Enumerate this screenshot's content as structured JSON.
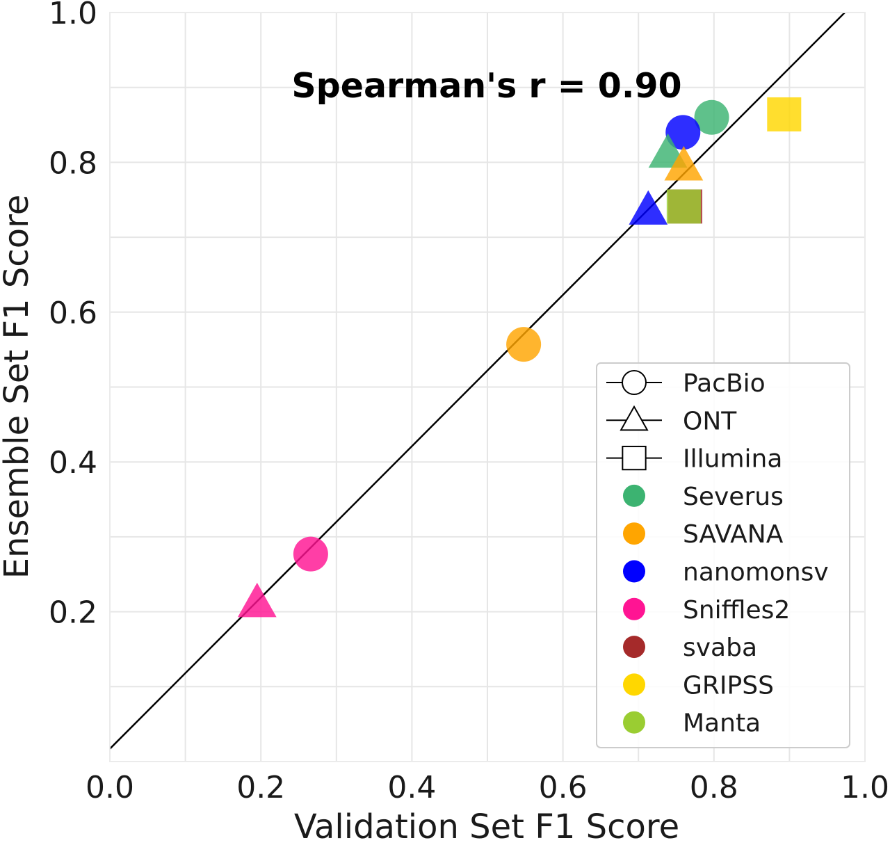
{
  "chart_data": {
    "type": "scatter",
    "title": "",
    "annotation": "Spearman's r = 0.90",
    "xlabel": "Validation Set F1 Score",
    "ylabel": "Ensemble Set F1 Score",
    "xlim": [
      0.0,
      1.0
    ],
    "ylim": [
      0.0,
      1.0
    ],
    "xticks": [
      "0.0",
      "0.2",
      "0.4",
      "0.6",
      "0.8",
      "1.0"
    ],
    "yticks": [
      "0.2",
      "0.4",
      "0.6",
      "0.8",
      "1.0"
    ],
    "grid": true,
    "grid_step": 0.1,
    "legend_position": "lower-right",
    "fit_line": {
      "intercept": 0.017,
      "slope": 1.01
    },
    "legend": [
      {
        "label": "PacBio",
        "kind": "shape",
        "shape": "circle"
      },
      {
        "label": "ONT",
        "kind": "shape",
        "shape": "triangle"
      },
      {
        "label": "Illumina",
        "kind": "shape",
        "shape": "square"
      },
      {
        "label": "Severus",
        "kind": "color",
        "color": "#3cb371"
      },
      {
        "label": "SAVANA",
        "kind": "color",
        "color": "#ffa500"
      },
      {
        "label": "nanomonsv",
        "kind": "color",
        "color": "#0000ff"
      },
      {
        "label": "Sniffles2",
        "kind": "color",
        "color": "#ff1493"
      },
      {
        "label": "svaba",
        "kind": "color",
        "color": "#a52a2a"
      },
      {
        "label": "GRIPSS",
        "kind": "color",
        "color": "#ffd700"
      },
      {
        "label": "Manta",
        "kind": "color",
        "color": "#9acd32"
      }
    ],
    "points": [
      {
        "caller": "Severus",
        "platform": "PacBio",
        "x": 0.797,
        "y": 0.86
      },
      {
        "caller": "nanomonsv",
        "platform": "PacBio",
        "x": 0.759,
        "y": 0.84
      },
      {
        "caller": "SAVANA",
        "platform": "PacBio",
        "x": 0.548,
        "y": 0.557
      },
      {
        "caller": "Sniffles2",
        "platform": "PacBio",
        "x": 0.266,
        "y": 0.277
      },
      {
        "caller": "Severus",
        "platform": "ONT",
        "x": 0.739,
        "y": 0.812
      },
      {
        "caller": "SAVANA",
        "platform": "ONT",
        "x": 0.76,
        "y": 0.795
      },
      {
        "caller": "nanomonsv",
        "platform": "ONT",
        "x": 0.713,
        "y": 0.736
      },
      {
        "caller": "Sniffles2",
        "platform": "ONT",
        "x": 0.195,
        "y": 0.212
      },
      {
        "caller": "GRIPSS",
        "platform": "Illumina",
        "x": 0.893,
        "y": 0.864
      },
      {
        "caller": "svaba",
        "platform": "Illumina",
        "x": 0.762,
        "y": 0.741
      },
      {
        "caller": "Manta",
        "platform": "Illumina",
        "x": 0.76,
        "y": 0.741
      }
    ],
    "colors": {
      "Severus": "#3cb371",
      "SAVANA": "#ffa500",
      "nanomonsv": "#0000ff",
      "Sniffles2": "#ff1493",
      "svaba": "#a52a2a",
      "GRIPSS": "#ffd700",
      "Manta": "#9acd32"
    }
  }
}
